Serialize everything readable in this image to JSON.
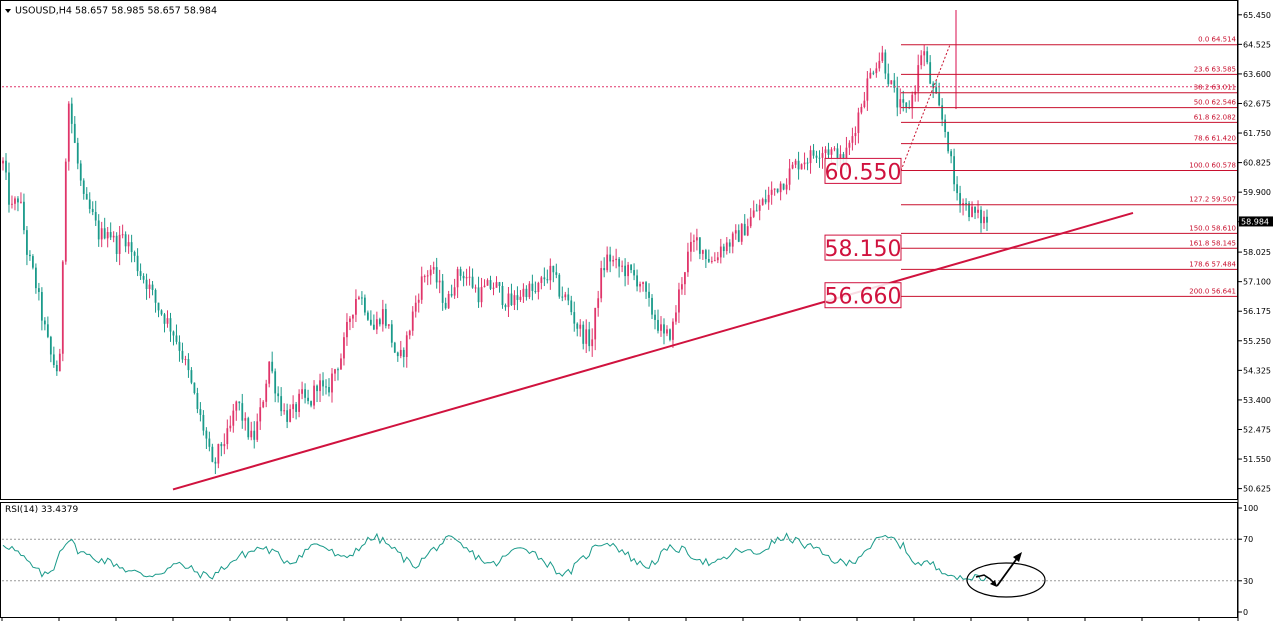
{
  "chart_data": [
    {
      "type": "candlestick",
      "symbol_header": "USOUSD,H4  58.657 58.985 58.657 58.984",
      "current_price": "58.984",
      "price_axis": {
        "range": [
          50.3,
          65.85
        ],
        "ticks": [
          "65.450",
          "64.525",
          "63.600",
          "62.675",
          "61.750",
          "60.825",
          "59.900",
          "58.975",
          "58.025",
          "57.100",
          "56.175",
          "55.250",
          "54.325",
          "53.400",
          "52.475",
          "51.550",
          "50.625"
        ]
      },
      "horizontal_line_dotted": 63.2,
      "fibonacci": [
        {
          "label": "0.0  64.514",
          "price": 64.514
        },
        {
          "label": "23.6  63.585",
          "price": 63.585
        },
        {
          "label": "38.2  63.011",
          "price": 63.011
        },
        {
          "label": "50.0  62.546",
          "price": 62.546
        },
        {
          "label": "61.8  62.082",
          "price": 62.082
        },
        {
          "label": "78.6  61.420",
          "price": 61.42
        },
        {
          "label": "100.0  60.578",
          "price": 60.578
        },
        {
          "label": "127.2  59.507",
          "price": 59.507
        },
        {
          "label": "150.0  58.610",
          "price": 58.61
        },
        {
          "label": "161.8  58.145",
          "price": 58.145
        },
        {
          "label": "178.6  57.484",
          "price": 57.484
        },
        {
          "label": "200.0  56.641",
          "price": 56.641
        }
      ],
      "level_labels": [
        {
          "text": "60.550",
          "price": 60.55
        },
        {
          "text": "58.150",
          "price": 58.15
        },
        {
          "text": "56.660",
          "price": 56.66
        }
      ],
      "trendline": {
        "start_price": 50.6,
        "end_price": 59.25
      },
      "price_path": [
        60.8,
        59.3,
        59.8,
        58.0,
        57.1,
        55.8,
        54.7,
        54.2,
        63.0,
        61.2,
        59.6,
        59.2,
        58.5,
        58.8,
        58.2,
        58.6,
        58.0,
        57.4,
        57.0,
        56.4,
        56.0,
        55.6,
        55.0,
        54.2,
        53.2,
        52.4,
        51.2,
        52.0,
        52.3,
        53.4,
        52.6,
        52.1,
        53.1,
        54.6,
        53.6,
        52.9,
        53.0,
        53.5,
        53.2,
        54.0,
        53.5,
        54.3,
        54.8,
        56.0,
        56.8,
        56.3,
        55.6,
        56.2,
        55.5,
        54.5,
        55.2,
        56.3,
        57.2,
        57.5,
        57.0,
        56.3,
        57.2,
        57.4,
        57.1,
        56.7,
        56.9,
        57.0,
        56.6,
        56.4,
        56.7,
        56.9,
        56.7,
        57.2,
        57.4,
        56.8,
        56.5,
        55.8,
        55.4,
        55.2,
        57.2,
        57.9,
        57.6,
        57.5,
        57.3,
        57.1,
        56.4,
        55.9,
        55.3,
        55.6,
        57.0,
        58.0,
        58.4,
        58.0,
        57.7,
        58.2,
        58.3,
        58.5,
        58.8,
        59.2,
        59.5,
        59.8,
        60.1,
        60.3,
        60.7,
        60.9,
        61.0,
        61.2,
        61.3,
        61.1,
        60.8,
        61.4,
        62.3,
        63.2,
        63.9,
        64.2,
        63.3,
        62.6,
        62.4,
        63.1,
        64.5,
        63.3,
        62.5,
        61.7,
        60.0,
        59.6,
        59.3,
        59.1,
        59.0
      ],
      "rsi": {
        "label": "RSI(14) 33.4379",
        "range": [
          0,
          100
        ],
        "ticks": [
          "100",
          "70",
          "30",
          "0"
        ],
        "levels": [
          70,
          30
        ],
        "values": [
          66,
          62,
          55,
          48,
          40,
          35,
          40,
          62,
          70,
          60,
          55,
          52,
          50,
          48,
          45,
          40,
          38,
          35,
          36,
          38,
          42,
          46,
          44,
          40,
          36,
          34,
          38,
          45,
          50,
          55,
          58,
          62,
          60,
          56,
          50,
          48,
          55,
          62,
          66,
          62,
          56,
          50,
          55,
          62,
          68,
          72,
          68,
          62,
          55,
          48,
          45,
          52,
          60,
          66,
          70,
          66,
          60,
          55,
          50,
          45,
          48,
          55,
          60,
          64,
          58,
          52,
          46,
          40,
          35,
          42,
          50,
          58,
          65,
          68,
          64,
          58,
          52,
          46,
          44,
          50,
          58,
          62,
          60,
          56,
          52,
          48,
          45,
          50,
          55,
          60,
          58,
          55,
          60,
          66,
          70,
          72,
          68,
          64,
          62,
          56,
          52,
          48,
          46,
          50,
          58,
          64,
          70,
          72,
          68,
          62,
          50,
          45,
          48,
          42,
          40,
          35,
          30,
          33,
          35,
          33
        ]
      }
    }
  ]
}
